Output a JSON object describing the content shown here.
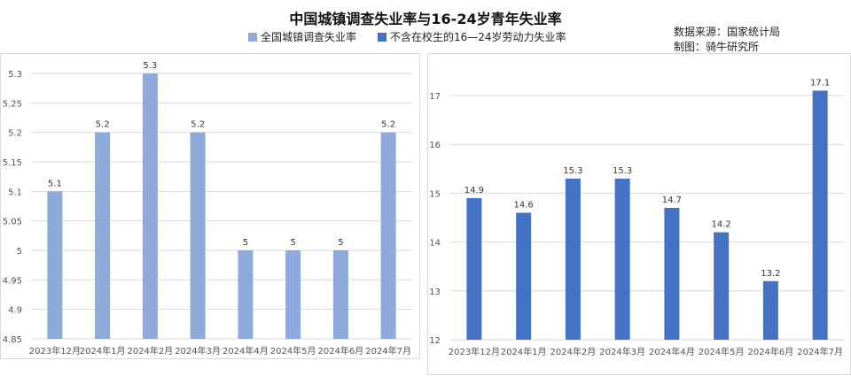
{
  "header": {
    "title": "中国城镇调查失业率与16-24岁青年失业率",
    "source_line1": "数据来源：国家统计局",
    "source_line2": "制图：骑牛研究所"
  },
  "legend": [
    {
      "label": "全国城镇调查失业率",
      "color": "#8EAADB"
    },
    {
      "label": "不含在校生的16—24岁劳动力失业率",
      "color": "#4472C4"
    }
  ],
  "chart_data": [
    {
      "type": "bar",
      "title": "",
      "categories": [
        "2023年12月",
        "2024年1月",
        "2024年2月",
        "2024年3月",
        "2024年4月",
        "2024年5月",
        "2024年6月",
        "2024年7月"
      ],
      "series": [
        {
          "name": "全国城镇调查失业率",
          "values": [
            5.1,
            5.2,
            5.3,
            5.2,
            5.0,
            5.0,
            5.0,
            5.2
          ],
          "labels": [
            "5.1",
            "5.2",
            "5.3",
            "5.2",
            "5",
            "5",
            "5",
            "5.2"
          ]
        }
      ],
      "ylim": [
        4.85,
        5.3
      ],
      "yticks": [
        "4.85",
        "4.9",
        "4.95",
        "5",
        "5.05",
        "5.1",
        "5.15",
        "5.2",
        "5.25",
        "5.3"
      ],
      "grid": true,
      "color": "#8EAADB"
    },
    {
      "type": "bar",
      "title": "",
      "categories": [
        "2023年12月",
        "2024年1月",
        "2024年2月",
        "2024年3月",
        "2024年4月",
        "2024年5月",
        "2024年6月",
        "2024年7月"
      ],
      "series": [
        {
          "name": "不含在校生的16—24岁劳动力失业率",
          "values": [
            14.9,
            14.6,
            15.3,
            15.3,
            14.7,
            14.2,
            13.2,
            17.1
          ],
          "labels": [
            "14.9",
            "14.6",
            "15.3",
            "15.3",
            "14.7",
            "14.2",
            "13.2",
            "17.1"
          ]
        }
      ],
      "ylim": [
        12,
        17
      ],
      "yticks": [
        "12",
        "13",
        "14",
        "15",
        "16",
        "17"
      ],
      "grid": true,
      "color": "#4472C4"
    }
  ]
}
